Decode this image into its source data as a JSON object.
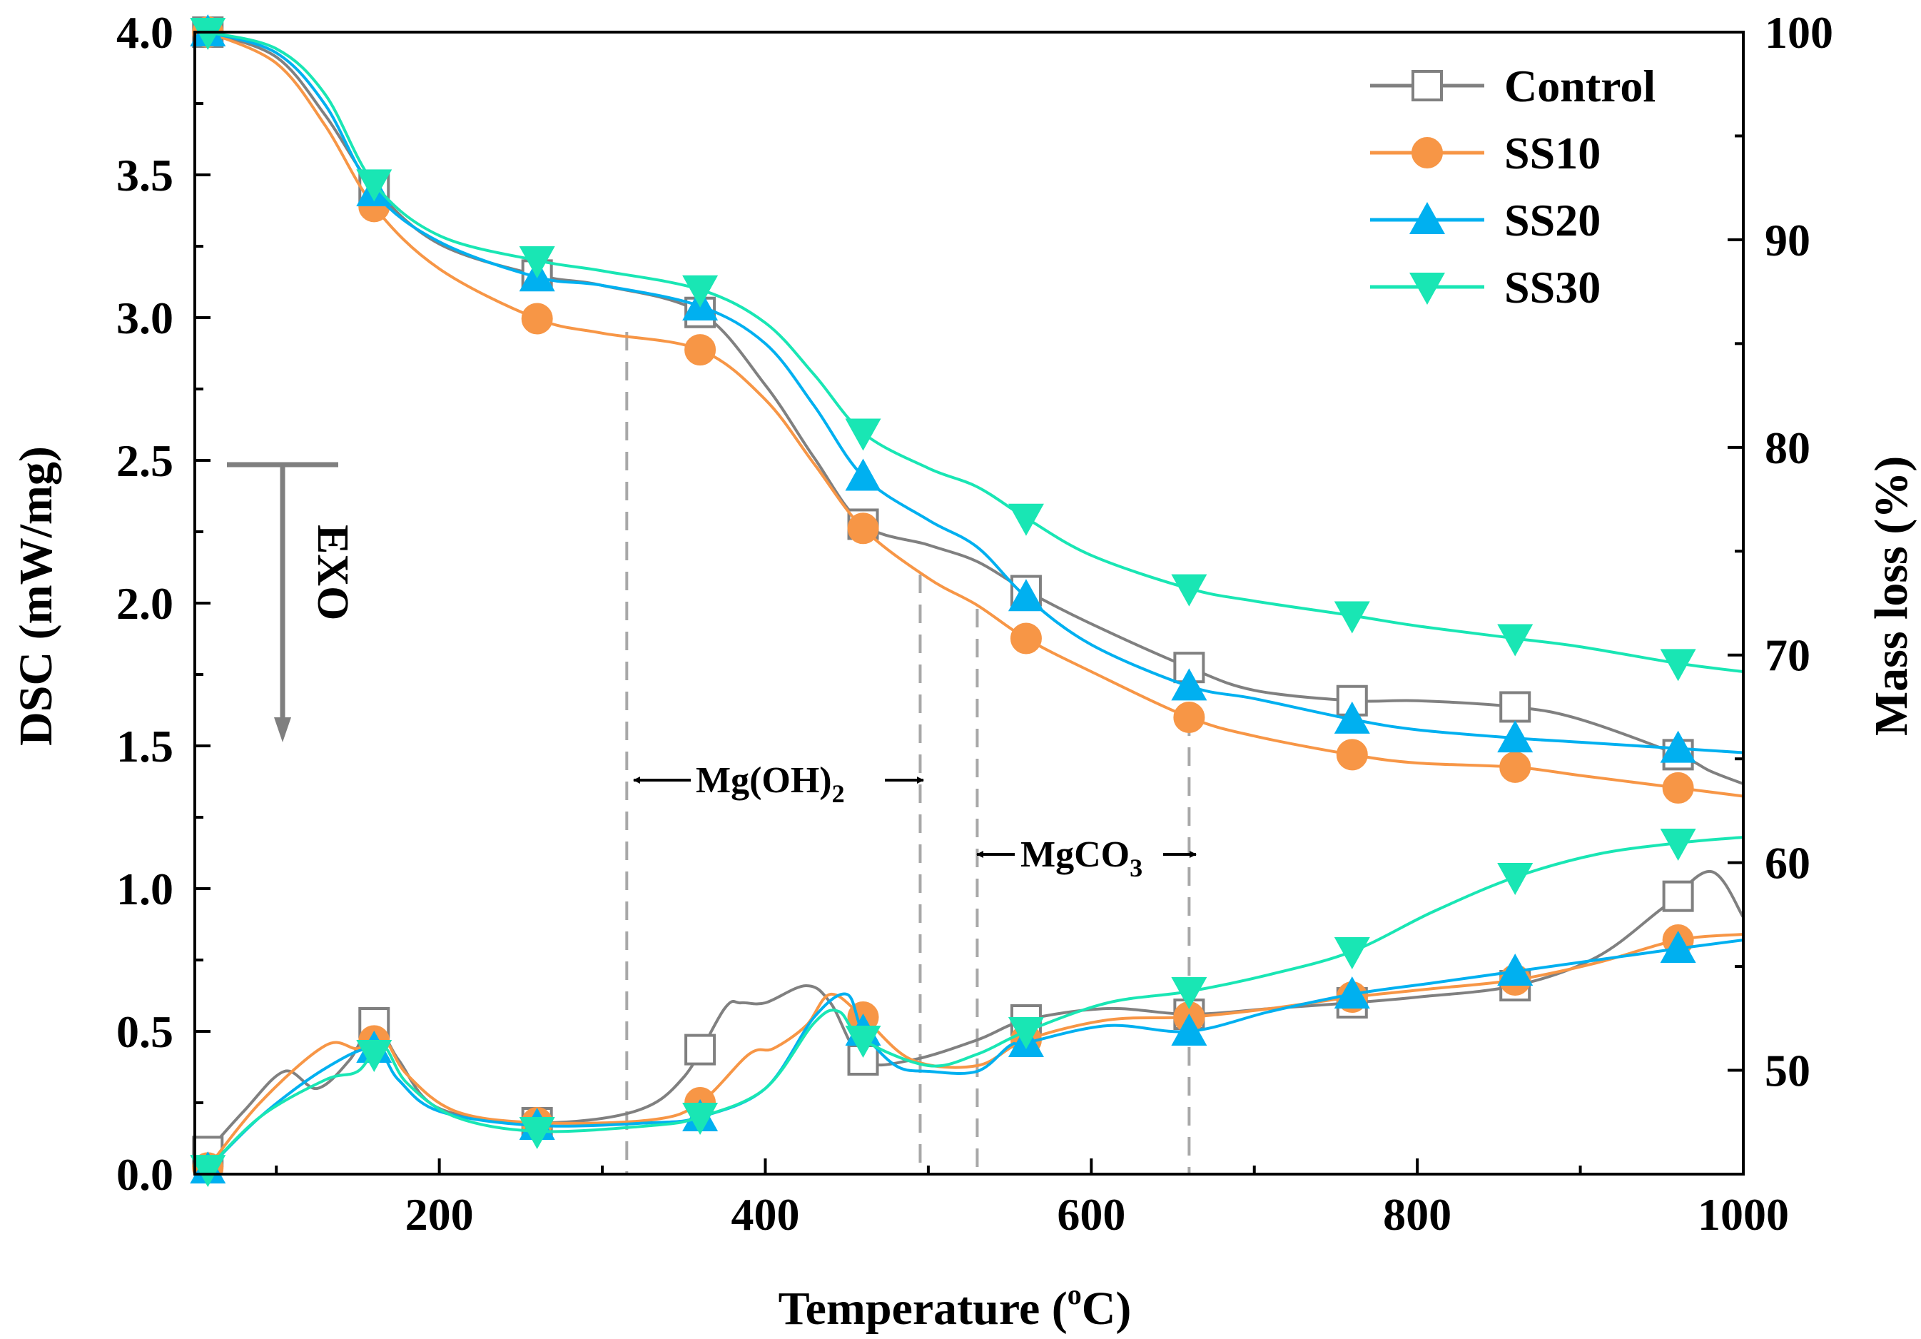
{
  "chart_data": {
    "type": "line",
    "xlabel_main": "Temperature (",
    "xlabel_sup": "o",
    "xlabel_end": "C)",
    "ylabel_left": "DSC (mW/mg)",
    "ylabel_right": "Mass loss (%)",
    "xlim": [
      50,
      1000
    ],
    "ylim_left": [
      0.0,
      4.0
    ],
    "ylim_right": [
      45,
      100
    ],
    "x_ticks": [
      200,
      400,
      600,
      800,
      1000
    ],
    "y_left_ticks": [
      "0.0",
      "0.5",
      "1.0",
      "1.5",
      "2.0",
      "2.5",
      "3.0",
      "3.5",
      "4.0"
    ],
    "y_right_ticks": [
      "50",
      "60",
      "70",
      "80",
      "90",
      "100"
    ],
    "legend_position": "top-right",
    "annotations": {
      "exo": "EXO",
      "mgoh2_main": "Mg(OH)",
      "mgoh2_sub": "2",
      "mgco3_main": "MgCO",
      "mgco3_sub": "3",
      "guide_lines_x": [
        315,
        495,
        530,
        660
      ]
    },
    "series": [
      {
        "name": "Control",
        "color": "#808080",
        "marker": "square-open",
        "mass_loss": {
          "x": [
            58,
            100,
            130,
            160,
            200,
            260,
            300,
            360,
            400,
            430,
            460,
            500,
            530,
            560,
            600,
            660,
            700,
            760,
            800,
            860,
            900,
            960,
            980,
            1000
          ],
          "y": [
            100,
            98.8,
            96,
            92.5,
            89.8,
            88.3,
            87.8,
            86.5,
            83,
            79.5,
            76.3,
            75.3,
            74.5,
            73.1,
            71.5,
            69.4,
            68.3,
            67.8,
            67.8,
            67.5,
            66.9,
            65.2,
            64.4,
            63.8
          ]
        },
        "dsc": {
          "x": [
            55,
            80,
            105,
            125,
            145,
            160,
            175,
            200,
            260,
            320,
            350,
            375,
            385,
            400,
            425,
            440,
            460,
            490,
            530,
            560,
            610,
            660,
            710,
            760,
            800,
            860,
            910,
            950,
            980,
            1000
          ],
          "y": [
            0.06,
            0.22,
            0.36,
            0.3,
            0.4,
            0.53,
            0.4,
            0.23,
            0.18,
            0.22,
            0.34,
            0.58,
            0.6,
            0.6,
            0.66,
            0.6,
            0.4,
            0.4,
            0.47,
            0.54,
            0.58,
            0.56,
            0.58,
            0.6,
            0.62,
            0.66,
            0.76,
            0.93,
            1.06,
            0.9
          ]
        }
      },
      {
        "name": "SS10",
        "color": "#f79646",
        "marker": "circle",
        "mass_loss": {
          "x": [
            58,
            100,
            130,
            160,
            200,
            260,
            300,
            360,
            400,
            430,
            460,
            500,
            530,
            560,
            600,
            660,
            700,
            760,
            800,
            860,
            900,
            960,
            1000
          ],
          "y": [
            100,
            98.5,
            95.5,
            91.6,
            88.6,
            86.2,
            85.5,
            84.7,
            82.3,
            79.2,
            76.1,
            73.7,
            72.4,
            70.8,
            69.2,
            67,
            66.1,
            65.2,
            64.8,
            64.6,
            64.2,
            63.6,
            63.2
          ]
        },
        "dsc": {
          "x": [
            55,
            90,
            130,
            150,
            165,
            180,
            210,
            260,
            330,
            360,
            390,
            405,
            425,
            440,
            460,
            490,
            530,
            560,
            610,
            660,
            710,
            760,
            810,
            860,
            910,
            960,
            1000
          ],
          "y": [
            0.0,
            0.25,
            0.45,
            0.44,
            0.48,
            0.35,
            0.22,
            0.18,
            0.19,
            0.25,
            0.42,
            0.44,
            0.52,
            0.63,
            0.55,
            0.4,
            0.38,
            0.47,
            0.54,
            0.55,
            0.58,
            0.62,
            0.65,
            0.68,
            0.74,
            0.82,
            0.84
          ]
        }
      },
      {
        "name": "SS20",
        "color": "#00b0f0",
        "marker": "triangle-up",
        "mass_loss": {
          "x": [
            58,
            100,
            130,
            160,
            200,
            260,
            300,
            360,
            400,
            430,
            460,
            500,
            530,
            560,
            600,
            660,
            700,
            760,
            800,
            860,
            900,
            960,
            1000
          ],
          "y": [
            100,
            99,
            96.5,
            92.3,
            89.9,
            88.2,
            87.8,
            86.8,
            85,
            82,
            78.6,
            76.5,
            75.2,
            72.8,
            70.5,
            68.5,
            67.9,
            66.9,
            66.4,
            66,
            65.8,
            65.5,
            65.3
          ]
        },
        "dsc": {
          "x": [
            55,
            90,
            130,
            160,
            175,
            200,
            260,
            330,
            360,
            400,
            430,
            450,
            460,
            480,
            500,
            530,
            550,
            560,
            610,
            660,
            710,
            760,
            810,
            860,
            910,
            960,
            1000
          ],
          "y": [
            0.0,
            0.2,
            0.37,
            0.44,
            0.33,
            0.22,
            0.17,
            0.18,
            0.2,
            0.3,
            0.55,
            0.63,
            0.5,
            0.38,
            0.36,
            0.36,
            0.45,
            0.46,
            0.52,
            0.5,
            0.57,
            0.63,
            0.67,
            0.71,
            0.75,
            0.79,
            0.82
          ]
        }
      },
      {
        "name": "SS30",
        "color": "#19e6b4",
        "marker": "triangle-down",
        "mass_loss": {
          "x": [
            58,
            100,
            130,
            160,
            200,
            260,
            300,
            360,
            400,
            430,
            460,
            500,
            530,
            560,
            600,
            660,
            700,
            760,
            800,
            860,
            900,
            960,
            1000
          ],
          "y": [
            100,
            99.2,
            97,
            92.7,
            90.2,
            89,
            88.5,
            87.6,
            86,
            83.5,
            80.7,
            79,
            78.1,
            76.6,
            74.8,
            73.2,
            72.6,
            71.9,
            71.4,
            70.8,
            70.4,
            69.6,
            69.2
          ]
        },
        "dsc": {
          "x": [
            55,
            90,
            130,
            150,
            165,
            180,
            210,
            260,
            330,
            360,
            400,
            430,
            445,
            460,
            500,
            530,
            560,
            610,
            660,
            710,
            760,
            810,
            860,
            910,
            960,
            1000
          ],
          "y": [
            0.0,
            0.2,
            0.33,
            0.36,
            0.45,
            0.32,
            0.2,
            0.15,
            0.17,
            0.2,
            0.3,
            0.53,
            0.57,
            0.47,
            0.38,
            0.42,
            0.5,
            0.6,
            0.64,
            0.7,
            0.78,
            0.92,
            1.04,
            1.12,
            1.16,
            1.18
          ]
        }
      }
    ]
  }
}
